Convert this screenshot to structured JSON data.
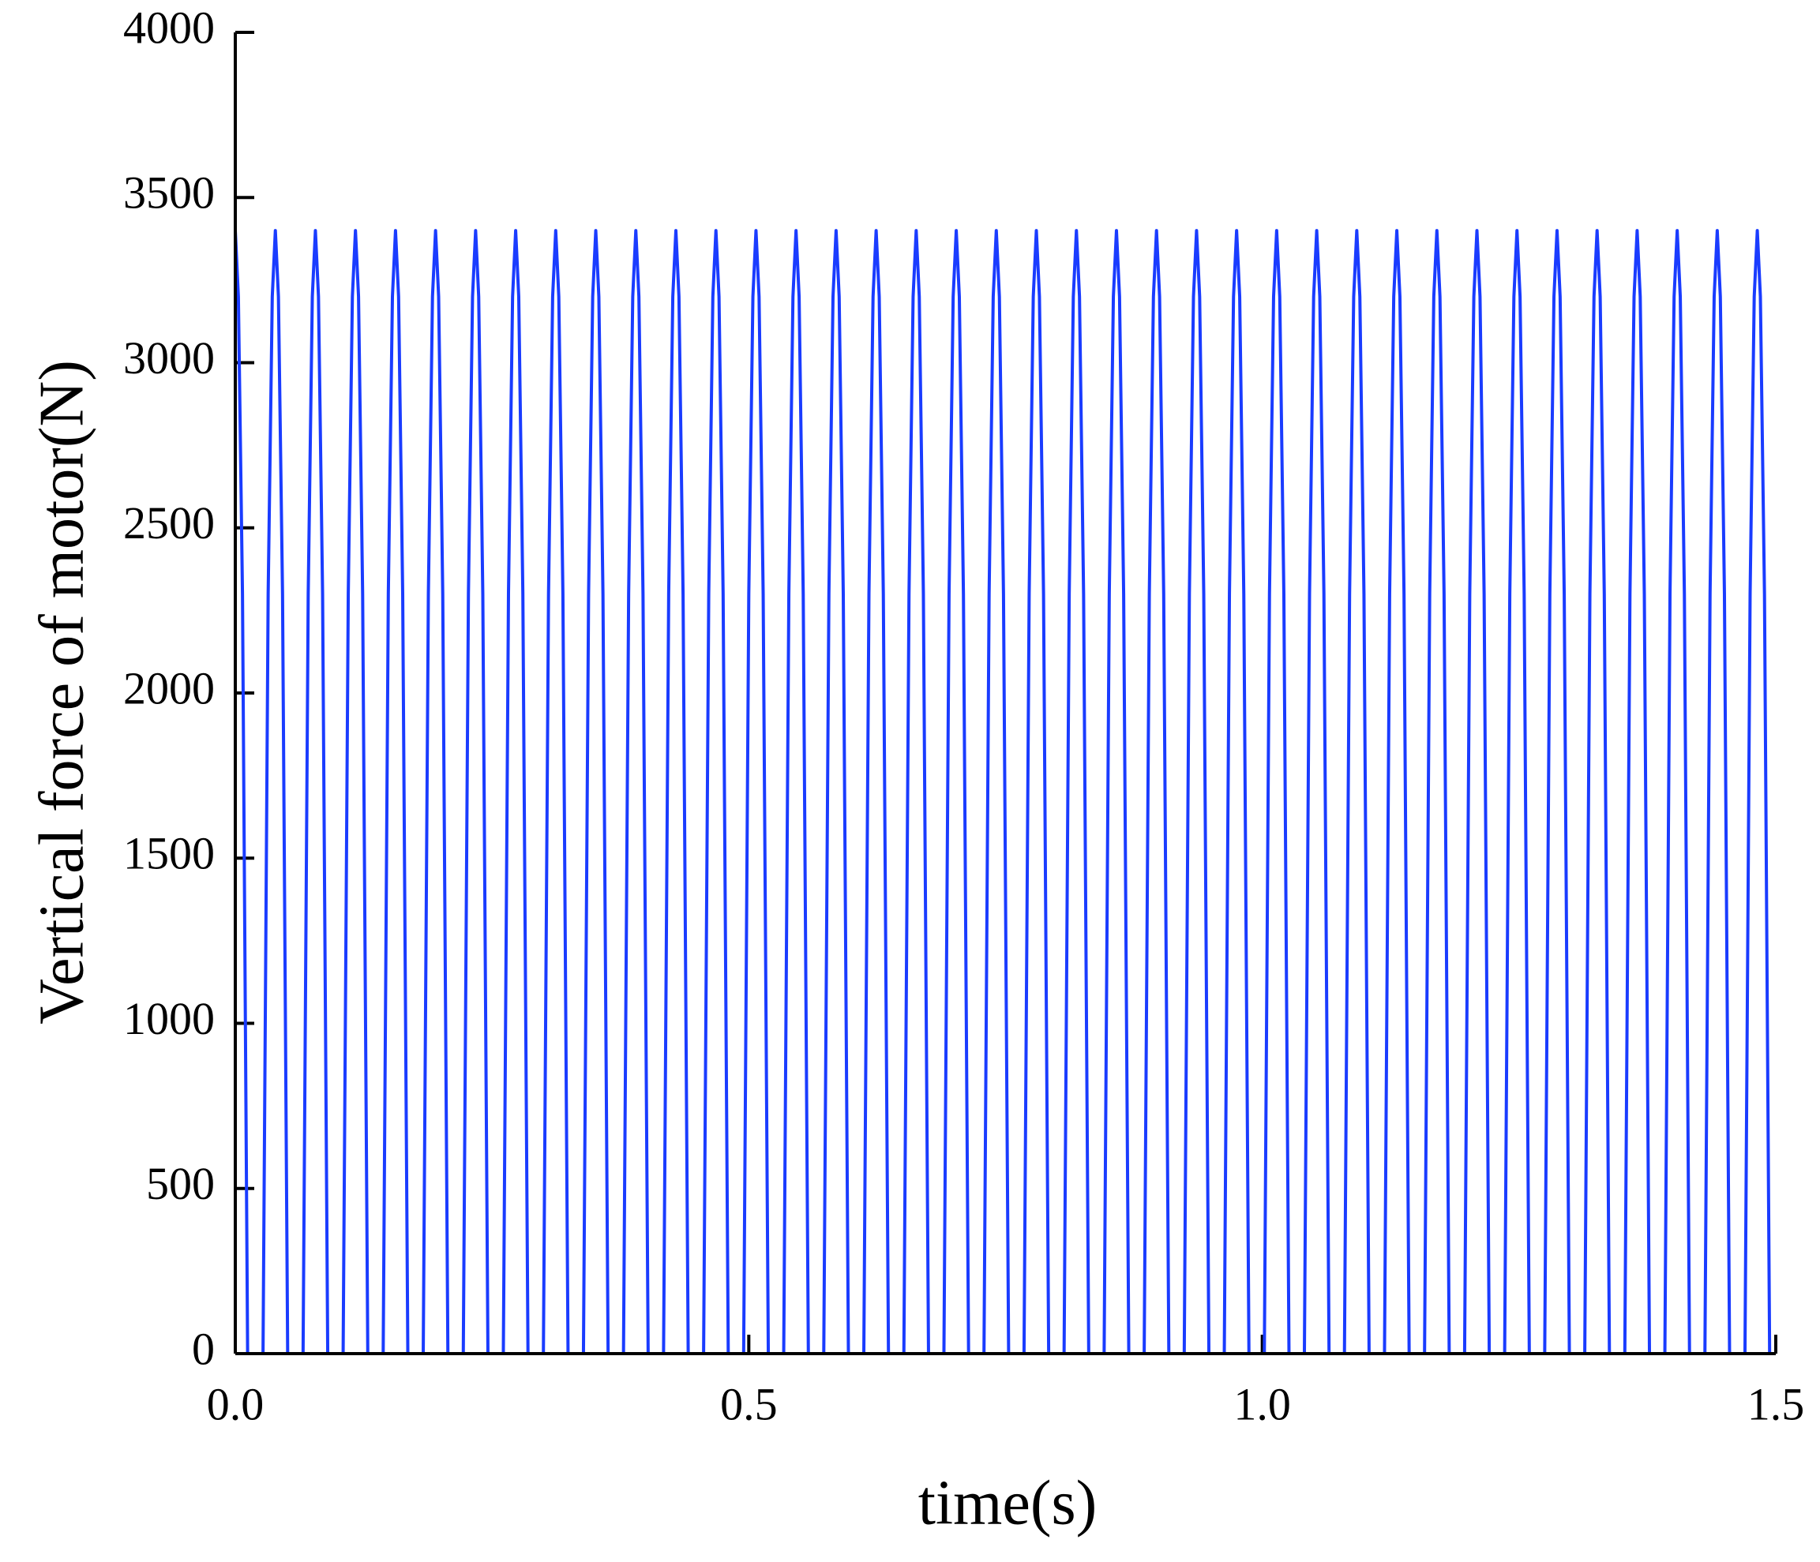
{
  "chart_data": {
    "type": "line",
    "xlabel": "time(s)",
    "ylabel": "Vertical force of motor(N)",
    "xlim": [
      0,
      1.5
    ],
    "xticks": [
      {
        "value": 0,
        "label": "0.0"
      },
      0.5,
      {
        "value": 1,
        "label": "1.0"
      },
      1.5
    ],
    "ylim": [
      0,
      4000
    ],
    "yticks": [
      0,
      500,
      1000,
      1500,
      2000,
      2500,
      3000,
      3500,
      4000
    ],
    "x": [
      0,
      0.003,
      0.007,
      0.012,
      0.027,
      0.032,
      0.036,
      0.039,
      0.042,
      0.046,
      0.051,
      0.066,
      0.071,
      0.075,
      0.078,
      0.081,
      0.085,
      0.09,
      0.105,
      0.11,
      0.114,
      0.117,
      0.12,
      0.124,
      0.129,
      0.144,
      0.149,
      0.153,
      0.156,
      0.159,
      0.163,
      0.168,
      0.183,
      0.188,
      0.192,
      0.195,
      0.198,
      0.202,
      0.207,
      0.222,
      0.227,
      0.231,
      0.234,
      0.237,
      0.241,
      0.246,
      0.261,
      0.266,
      0.27,
      0.273,
      0.276,
      0.28,
      0.285,
      0.3,
      0.305,
      0.309,
      0.312,
      0.315,
      0.319,
      0.324,
      0.339,
      0.344,
      0.348,
      0.351,
      0.354,
      0.358,
      0.363,
      0.378,
      0.383,
      0.387,
      0.39,
      0.393,
      0.397,
      0.402,
      0.417,
      0.422,
      0.426,
      0.429,
      0.432,
      0.436,
      0.441,
      0.456,
      0.461,
      0.465,
      0.468,
      0.471,
      0.475,
      0.48,
      0.495,
      0.5,
      0.504,
      0.507,
      0.51,
      0.514,
      0.519,
      0.534,
      0.539,
      0.543,
      0.546,
      0.549,
      0.553,
      0.558,
      0.573,
      0.578,
      0.582,
      0.585,
      0.588,
      0.592,
      0.597,
      0.612,
      0.617,
      0.621,
      0.624,
      0.627,
      0.631,
      0.636,
      0.651,
      0.656,
      0.66,
      0.663,
      0.666,
      0.67,
      0.675,
      0.69,
      0.695,
      0.699,
      0.702,
      0.705,
      0.709,
      0.714,
      0.729,
      0.734,
      0.738,
      0.741,
      0.744,
      0.748,
      0.753,
      0.768,
      0.773,
      0.777,
      0.78,
      0.783,
      0.787,
      0.792,
      0.807,
      0.812,
      0.816,
      0.819,
      0.822,
      0.826,
      0.831,
      0.846,
      0.851,
      0.855,
      0.858,
      0.861,
      0.865,
      0.87,
      0.885,
      0.89,
      0.894,
      0.897,
      0.9,
      0.904,
      0.909,
      0.924,
      0.929,
      0.933,
      0.936,
      0.939,
      0.943,
      0.948,
      0.963,
      0.968,
      0.972,
      0.975,
      0.978,
      0.982,
      0.987,
      1.002,
      1.007,
      1.011,
      1.014,
      1.017,
      1.021,
      1.026,
      1.041,
      1.046,
      1.05,
      1.053,
      1.056,
      1.06,
      1.065,
      1.08,
      1.085,
      1.089,
      1.092,
      1.095,
      1.099,
      1.104,
      1.119,
      1.124,
      1.128,
      1.131,
      1.134,
      1.138,
      1.143,
      1.158,
      1.163,
      1.167,
      1.17,
      1.173,
      1.177,
      1.182,
      1.197,
      1.202,
      1.206,
      1.209,
      1.212,
      1.216,
      1.221,
      1.236,
      1.241,
      1.245,
      1.248,
      1.251,
      1.255,
      1.26,
      1.275,
      1.28,
      1.284,
      1.287,
      1.29,
      1.294,
      1.299,
      1.314,
      1.319,
      1.323,
      1.326,
      1.329,
      1.333,
      1.338,
      1.353,
      1.358,
      1.362,
      1.365,
      1.368,
      1.372,
      1.377,
      1.392,
      1.397,
      1.401,
      1.404,
      1.407,
      1.411,
      1.416,
      1.431,
      1.436,
      1.44,
      1.443,
      1.446,
      1.45,
      1.455,
      1.47,
      1.475,
      1.479,
      1.482,
      1.485,
      1.489,
      1.494
    ],
    "series": [
      {
        "color": "#1a3cff",
        "values": [
          3400,
          3200,
          2300,
          0,
          0,
          2300,
          3200,
          3400,
          3200,
          2300,
          0,
          0,
          2300,
          3200,
          3400,
          3200,
          2300,
          0,
          0,
          2300,
          3200,
          3400,
          3200,
          2300,
          0,
          0,
          2300,
          3200,
          3400,
          3200,
          2300,
          0,
          0,
          2300,
          3200,
          3400,
          3200,
          2300,
          0,
          0,
          2300,
          3200,
          3400,
          3200,
          2300,
          0,
          0,
          2300,
          3200,
          3400,
          3200,
          2300,
          0,
          0,
          2300,
          3200,
          3400,
          3200,
          2300,
          0,
          0,
          2300,
          3200,
          3400,
          3200,
          2300,
          0,
          0,
          2300,
          3200,
          3400,
          3200,
          2300,
          0,
          0,
          2300,
          3200,
          3400,
          3200,
          2300,
          0,
          0,
          2300,
          3200,
          3400,
          3200,
          2300,
          0,
          0,
          2300,
          3200,
          3400,
          3200,
          2300,
          0,
          0,
          2300,
          3200,
          3400,
          3200,
          2300,
          0,
          0,
          2300,
          3200,
          3400,
          3200,
          2300,
          0,
          0,
          2300,
          3200,
          3400,
          3200,
          2300,
          0,
          0,
          2300,
          3200,
          3400,
          3200,
          2300,
          0,
          0,
          2300,
          3200,
          3400,
          3200,
          2300,
          0,
          0,
          2300,
          3200,
          3400,
          3200,
          2300,
          0,
          0,
          2300,
          3200,
          3400,
          3200,
          2300,
          0,
          0,
          2300,
          3200,
          3400,
          3200,
          2300,
          0,
          0,
          2300,
          3200,
          3400,
          3200,
          2300,
          0,
          0,
          2300,
          3200,
          3400,
          3200,
          2300,
          0,
          0,
          2300,
          3200,
          3400,
          3200,
          2300,
          0,
          0,
          2300,
          3200,
          3400,
          3200,
          2300,
          0,
          0,
          2300,
          3200,
          3400,
          3200,
          2300,
          0,
          0,
          2300,
          3200,
          3400,
          3200,
          2300,
          0,
          0,
          2300,
          3200,
          3400,
          3200,
          2300,
          0,
          0,
          2300,
          3200,
          3400,
          3200,
          2300,
          0,
          0,
          2300,
          3200,
          3400,
          3200,
          2300,
          0,
          0,
          2300,
          3200,
          3400,
          3200,
          2300,
          0,
          0,
          2300,
          3200,
          3400,
          3200,
          2300,
          0,
          0,
          2300,
          3200,
          3400,
          3200,
          2300,
          0,
          0,
          2300,
          3200,
          3400,
          3200,
          2300,
          0,
          0,
          2300,
          3200,
          3400,
          3200,
          2300,
          0,
          0,
          2300,
          3200,
          3400,
          3200,
          2300,
          0,
          0,
          2300,
          3200,
          3400,
          3200,
          2300,
          0,
          0,
          2300,
          3200,
          3400,
          3200,
          2300,
          0
        ]
      }
    ]
  }
}
